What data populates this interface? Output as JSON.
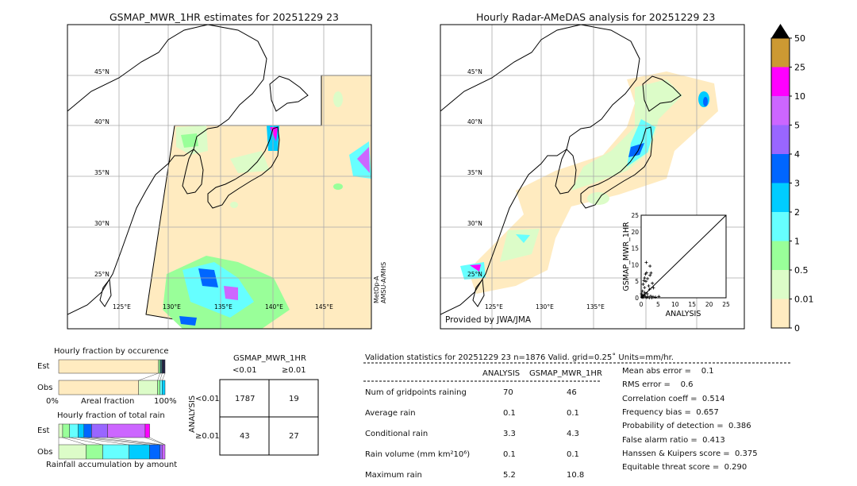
{
  "left_map": {
    "title": "GSMAP_MWR_1HR estimates for 20251229 23",
    "sensor_label_1": "MetOp-A",
    "sensor_label_2": "AMSU-A/MHS"
  },
  "right_map": {
    "title": "Hourly Radar-AMeDAS analysis for 20251229 23",
    "credit": "Provided by JWA/JMA"
  },
  "lat_labels": [
    "45°N",
    "40°N",
    "35°N",
    "30°N",
    "25°N"
  ],
  "lon_labels_left": [
    "125°E",
    "130°E",
    "135°E",
    "140°E",
    "145°E"
  ],
  "lon_labels_right": [
    "125°E",
    "130°E",
    "135°E"
  ],
  "chart_data": [
    {
      "type": "heatmap",
      "name": "colorbar",
      "levels": [
        "0",
        "0.01",
        "0.5",
        "1",
        "2",
        "3",
        "4",
        "5",
        "10",
        "25",
        "50"
      ],
      "colors": [
        "#ffebc0",
        "#dcfcc8",
        "#99ff99",
        "#66ffff",
        "#00ccff",
        "#0066ff",
        "#9966ff",
        "#cc66ff",
        "#ff00ff",
        "#cc9933"
      ],
      "extend": "max",
      "units": "mm/hr"
    },
    {
      "type": "scatter",
      "name": "inset-scatter",
      "xlabel": "ANALYSIS",
      "ylabel": "GSMAP_MWR_1HR",
      "xlim": [
        0,
        25
      ],
      "ylim": [
        0,
        25
      ],
      "ticks": [
        "0",
        "5",
        "10",
        "15",
        "20",
        "25"
      ],
      "points": [
        [
          1.5,
          10.7
        ],
        [
          2.6,
          9.6
        ],
        [
          1.6,
          7.6
        ],
        [
          1.3,
          7.2
        ],
        [
          2.9,
          7.5
        ],
        [
          2.6,
          6.8
        ],
        [
          1.0,
          6.0
        ],
        [
          1.9,
          5.8
        ],
        [
          0.8,
          5.2
        ],
        [
          1.4,
          5.0
        ],
        [
          3.3,
          4.4
        ],
        [
          0.6,
          4.1
        ],
        [
          2.2,
          3.6
        ],
        [
          3.6,
          3.0
        ],
        [
          1.0,
          3.1
        ],
        [
          2.5,
          2.6
        ],
        [
          0.4,
          2.0
        ],
        [
          1.1,
          1.6
        ],
        [
          1.8,
          1.2
        ],
        [
          0.3,
          0.8
        ],
        [
          0.7,
          0.6
        ],
        [
          1.2,
          0.4
        ],
        [
          2.0,
          0.3
        ],
        [
          2.8,
          0.5
        ],
        [
          3.5,
          0.3
        ],
        [
          4.2,
          0.2
        ],
        [
          5.2,
          0.4
        ],
        [
          0.2,
          0.2
        ],
        [
          0.5,
          0.1
        ],
        [
          1.6,
          0.1
        ],
        [
          0.9,
          0.9
        ],
        [
          2.4,
          0.0
        ],
        [
          3.1,
          0.0
        ],
        [
          0.1,
          1.2
        ]
      ]
    },
    {
      "type": "bar",
      "name": "occurrence-fraction",
      "title": "Hourly fraction by occurence",
      "xlabel": "Areal fraction",
      "tick_left": "0%",
      "tick_right": "100%",
      "categories": [
        "Est",
        "Obs"
      ],
      "series": [
        {
          "name": "Est",
          "cumulative": [
            0.938,
            0.953,
            0.973,
            1.0
          ],
          "colors": [
            "#ffebc0",
            "#99ff99",
            "#336666",
            "#222244"
          ]
        },
        {
          "name": "Obs",
          "cumulative": [
            0.751,
            0.93,
            0.953,
            0.973,
            1.0
          ],
          "colors": [
            "#ffebc0",
            "#dcfcc8",
            "#99ff99",
            "#66ffff",
            "#00ccff"
          ]
        }
      ]
    },
    {
      "type": "bar",
      "name": "total-rain-fraction",
      "title": "Hourly fraction of total rain",
      "xlabel": "Rainfall accumulation by amount",
      "categories": [
        "Est",
        "Obs"
      ],
      "series": [
        {
          "name": "Est",
          "cumulative": [
            0.037,
            0.102,
            0.182,
            0.237,
            0.309,
            0.459,
            0.813,
            0.855
          ],
          "colors": [
            "#dcfcc8",
            "#99ff99",
            "#66ffff",
            "#00ccff",
            "#0066ff",
            "#9966ff",
            "#cc66ff",
            "#ff00ff"
          ]
        },
        {
          "name": "Obs",
          "cumulative": [
            0.257,
            0.414,
            0.661,
            0.855,
            0.953,
            0.973,
            1.0
          ],
          "colors": [
            "#dcfcc8",
            "#99ff99",
            "#66ffff",
            "#00ccff",
            "#0066ff",
            "#9966ff",
            "#cc66ff"
          ]
        }
      ]
    },
    {
      "type": "table",
      "name": "contingency-table",
      "col_title": "GSMAP_MWR_1HR",
      "row_title": "ANALYSIS",
      "col_labels": [
        "<0.01",
        "≥0.01"
      ],
      "row_labels": [
        "<0.01",
        "≥0.01"
      ],
      "cells": [
        [
          "1787",
          "19"
        ],
        [
          "43",
          "27"
        ]
      ]
    }
  ],
  "stats": {
    "header": "Validation statistics for 20251229 23  n=1876 Valid. grid=0.25˚ Units=mm/hr.",
    "col_analysis": "ANALYSIS",
    "col_gsmap": "GSMAP_MWR_1HR",
    "rows": [
      {
        "label": "Num of gridpoints raining",
        "a": "70",
        "g": "46"
      },
      {
        "label": "Average rain",
        "a": "0.1",
        "g": "0.1"
      },
      {
        "label": "Conditional rain",
        "a": "3.3",
        "g": "4.3"
      },
      {
        "label": "Rain volume (mm km²10⁶)",
        "a": "0.1",
        "g": "0.1"
      },
      {
        "label": "Maximum rain",
        "a": "5.2",
        "g": "10.8"
      }
    ],
    "scores": [
      "Mean abs error =    0.1",
      "RMS error =    0.6",
      "Correlation coeff =  0.514",
      "Frequency bias =  0.657",
      "Probability of detection =  0.386",
      "False alarm ratio =  0.413",
      "Hanssen & Kuipers score =  0.375",
      "Equitable threat score =  0.290"
    ]
  }
}
